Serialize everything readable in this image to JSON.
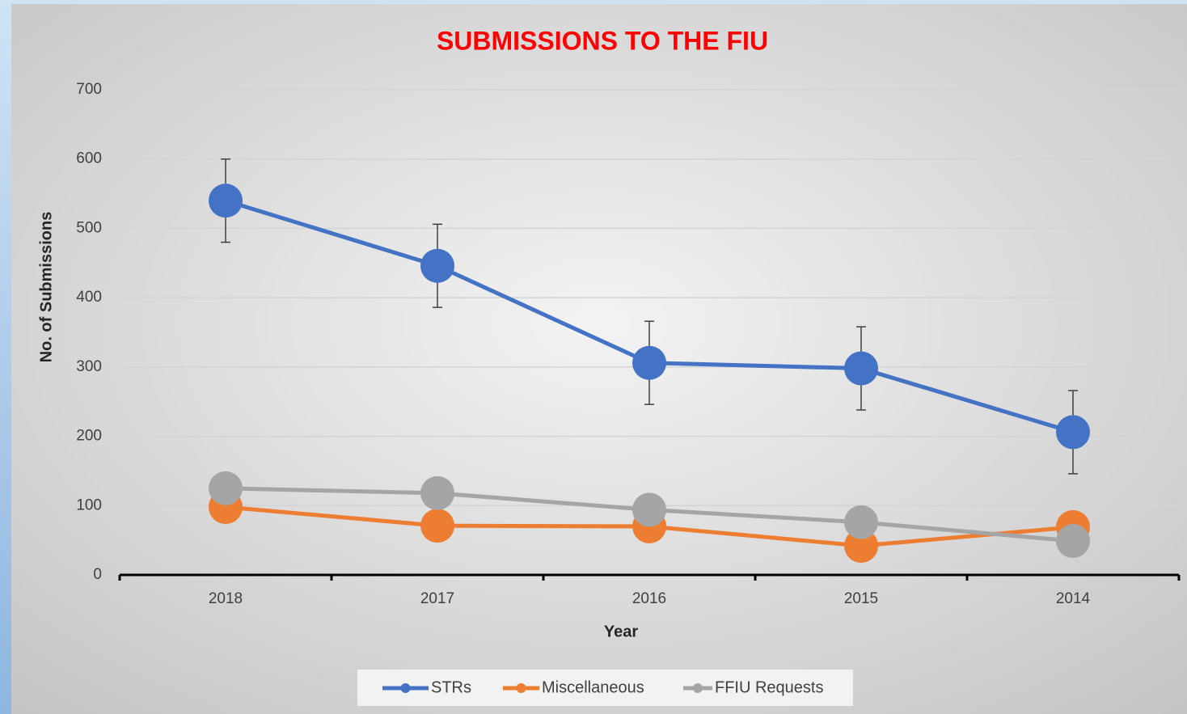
{
  "chart_data": {
    "type": "line",
    "title": "SUBMISSIONS TO THE FIU",
    "xlabel": "Year",
    "ylabel": "No. of Submissions",
    "categories": [
      "2018",
      "2017",
      "2016",
      "2015",
      "2014"
    ],
    "series": [
      {
        "name": "STRs",
        "color": "#4472c4",
        "values": [
          540,
          446,
          306,
          298,
          206
        ],
        "errors": [
          60,
          60,
          60,
          60,
          60
        ]
      },
      {
        "name": "Miscellaneous",
        "color": "#ed7d31",
        "values": [
          98,
          71,
          70,
          42,
          69
        ]
      },
      {
        "name": "FFIU Requests",
        "color": "#a5a5a5",
        "values": [
          125,
          118,
          94,
          76,
          49
        ]
      }
    ],
    "ylim": [
      0,
      700
    ],
    "yticks": [
      0,
      100,
      200,
      300,
      400,
      500,
      600,
      700
    ],
    "grid": true,
    "legend": "bottom"
  }
}
